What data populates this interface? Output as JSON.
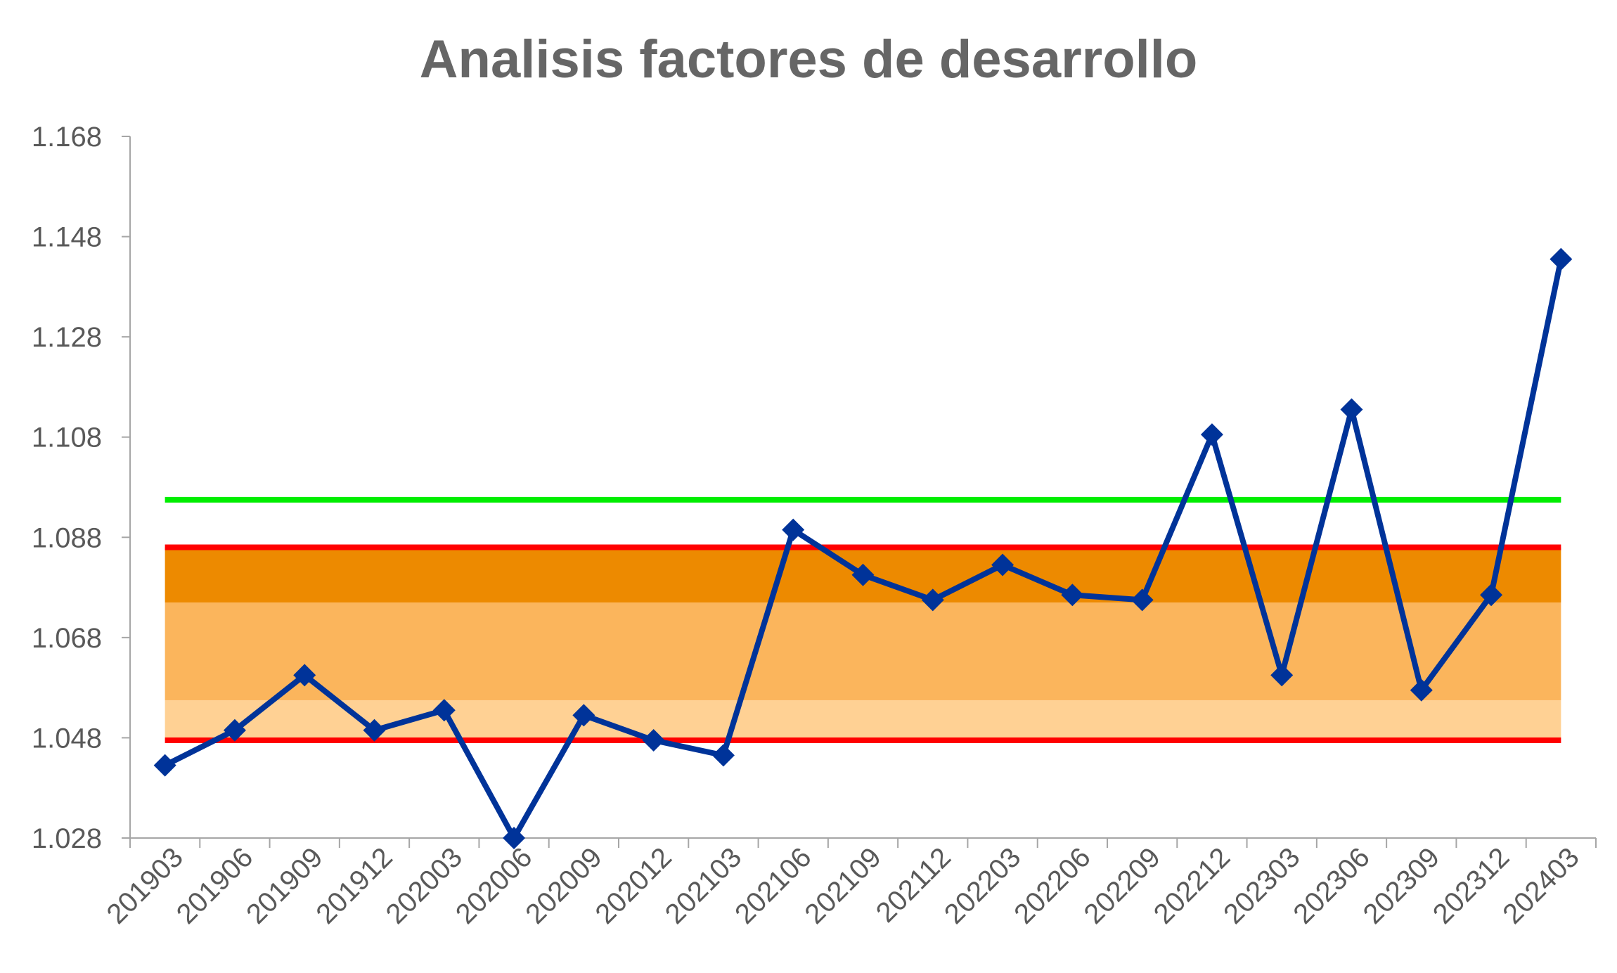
{
  "chart_data": {
    "type": "line",
    "title": "Analisis factores de desarrollo",
    "xlabel": "",
    "ylabel": "",
    "ylim": [
      1.028,
      1.168
    ],
    "yticks": [
      "1.168",
      "1.148",
      "1.128",
      "1.108",
      "1.088",
      "1.068",
      "1.048",
      "1.028"
    ],
    "ytick_values": [
      1.168,
      1.148,
      1.128,
      1.108,
      1.088,
      1.068,
      1.048,
      1.028
    ],
    "categories": [
      "201903",
      "201906",
      "201909",
      "201912",
      "202003",
      "202006",
      "202009",
      "202012",
      "202103",
      "202106",
      "202109",
      "202112",
      "202203",
      "202206",
      "202209",
      "202212",
      "202303",
      "202306",
      "202309",
      "202312",
      "202403"
    ],
    "series": [
      {
        "values": [
          1.0425,
          1.0495,
          1.0605,
          1.0495,
          1.0535,
          1.028,
          1.0525,
          1.0475,
          1.0445,
          1.0895,
          1.0805,
          1.0755,
          1.0825,
          1.0765,
          1.0755,
          1.1085,
          1.0605,
          1.1135,
          1.0575,
          1.0765,
          1.1435
        ],
        "color": "#003399",
        "marker": "diamond"
      }
    ],
    "reference_lines": [
      {
        "value": 1.0955,
        "color": "#00ee00"
      },
      {
        "value": 1.086,
        "color": "#ff0000"
      },
      {
        "value": 1.0475,
        "color": "#ff0000"
      }
    ],
    "bands": [
      {
        "from": 1.0475,
        "to": 1.0555,
        "color": "#ffd194"
      },
      {
        "from": 1.0555,
        "to": 1.075,
        "color": "#fbb55c"
      },
      {
        "from": 1.075,
        "to": 1.086,
        "color": "#ed8a00"
      }
    ],
    "grid": false,
    "legend": "none"
  }
}
